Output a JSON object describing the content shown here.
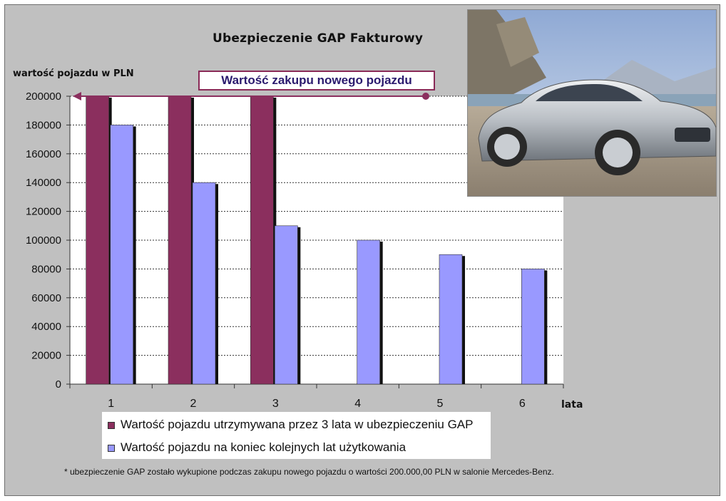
{
  "chart_data": {
    "type": "bar",
    "title": "Ubezpieczenie GAP Fakturowy",
    "ylabel": "wartość pojazdu w PLN",
    "xlabel": "lata",
    "categories": [
      "1",
      "2",
      "3",
      "4",
      "5",
      "6"
    ],
    "series": [
      {
        "name": "Wartość pojazdu utrzymywana przez 3 lata w ubezpieczeniu GAP",
        "values": [
          200000,
          200000,
          200000,
          null,
          null,
          null
        ],
        "color": "#8b2f5e"
      },
      {
        "name": "Wartość pojazdu na koniec kolejnych lat użytkowania",
        "values": [
          180000,
          140000,
          110000,
          100000,
          90000,
          80000
        ],
        "color": "#9999ff"
      }
    ],
    "ylim": [
      0,
      200000
    ],
    "yticks": [
      "0",
      "20000",
      "40000",
      "60000",
      "80000",
      "100000",
      "120000",
      "140000",
      "160000",
      "180000",
      "200000"
    ],
    "grid": true,
    "legend_position": "bottom",
    "annotation": {
      "text": "Wartość zakupu nowego pojazdu",
      "value": 200000,
      "color": "#8b2f5e"
    },
    "footnote": "* ubezpieczenie GAP zostało wykupione podczas zakupu nowego pojazdu o wartości 200.000,00 PLN w salonie Mercedes-Benz."
  },
  "icons": {
    "photo": "car-photo-icon"
  }
}
